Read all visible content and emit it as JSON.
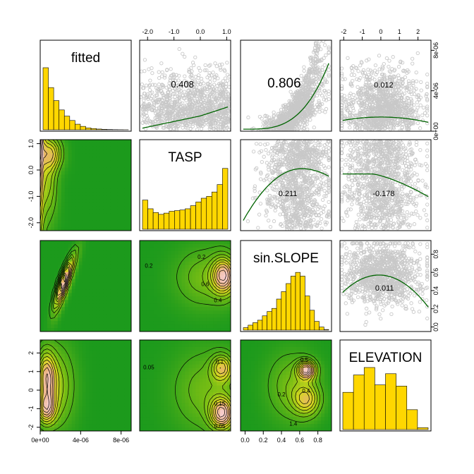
{
  "chart_data": {
    "type": "scatter",
    "variables": [
      "fitted",
      "TASP",
      "sin.SLOPE",
      "ELEVATION"
    ],
    "ranges": {
      "fitted": [
        0,
        9e-06
      ],
      "TASP": [
        -2.3,
        1.15
      ],
      "sin.SLOPE": [
        -0.05,
        0.95
      ],
      "ELEVATION": [
        -2.2,
        2.7
      ]
    },
    "ticks": {
      "fitted": {
        "values": [
          0,
          4e-06,
          8e-06
        ],
        "labels": [
          "0e+00",
          "4e-06",
          "8e-06"
        ]
      },
      "TASP": {
        "values": [
          -2,
          -1,
          0,
          1
        ],
        "labels": [
          "-2.0",
          "-1.0",
          "0.0",
          "1.0"
        ],
        "side_values": [
          -2,
          -1,
          0,
          1
        ],
        "side_labels": [
          "-2.0",
          "-1.0",
          "0.0",
          "1.0"
        ]
      },
      "sin.SLOPE": {
        "values": [
          0,
          0.2,
          0.4,
          0.6,
          0.8
        ],
        "labels": [
          "0.0",
          "0.2",
          "0.4",
          "0.6",
          "0.8"
        ]
      },
      "ELEVATION": {
        "values": [
          -2,
          -1,
          0,
          1,
          2
        ],
        "labels": [
          "-2",
          "-1",
          "0",
          "1",
          "2"
        ]
      }
    },
    "correlations": [
      {
        "row": 0,
        "col": 1,
        "value": "0.408"
      },
      {
        "row": 0,
        "col": 2,
        "value": "0.806"
      },
      {
        "row": 0,
        "col": 3,
        "value": "0.012"
      },
      {
        "row": 1,
        "col": 2,
        "value": "0.211"
      },
      {
        "row": 1,
        "col": 3,
        "value": "-0.178"
      },
      {
        "row": 2,
        "col": 3,
        "value": "0.011"
      }
    ],
    "histograms": {
      "fitted": [
        1.0,
        0.68,
        0.47,
        0.32,
        0.22,
        0.15,
        0.09,
        0.055,
        0.03,
        0.02,
        0.012,
        0.008,
        0.005,
        0.003,
        0.002,
        0.001
      ],
      "TASP": [
        0.47,
        0.33,
        0.27,
        0.24,
        0.26,
        0.29,
        0.3,
        0.31,
        0.33,
        0.38,
        0.44,
        0.5,
        0.53,
        0.6,
        0.72,
        0.98
      ],
      "sin.SLOPE": [
        0.04,
        0.08,
        0.12,
        0.16,
        0.23,
        0.3,
        0.35,
        0.5,
        0.62,
        0.75,
        0.87,
        0.93,
        0.87,
        0.55,
        0.32,
        0.14,
        0.05,
        0.01
      ],
      "ELEVATION": [
        0.6,
        0.88,
        1.0,
        0.72,
        0.9,
        0.7,
        0.32,
        0.03
      ]
    },
    "contour_labels": [
      {
        "row": 2,
        "col": 1,
        "labels": [
          "0.2",
          "0.2",
          "0.6",
          "0.4"
        ]
      },
      {
        "row": 3,
        "col": 1,
        "labels": [
          "0.1",
          "0.05",
          "0.15",
          "0.05"
        ]
      },
      {
        "row": 3,
        "col": 2,
        "labels": [
          "0.5",
          "0.2",
          "0.4",
          "1.4"
        ]
      }
    ],
    "colors": {
      "point": "#c8c8c8",
      "smooth": "#006400",
      "hist": "#ffd700",
      "density_low": "#1c9a1c",
      "density_high": "#f4c4c4",
      "contour": "#000000"
    }
  }
}
